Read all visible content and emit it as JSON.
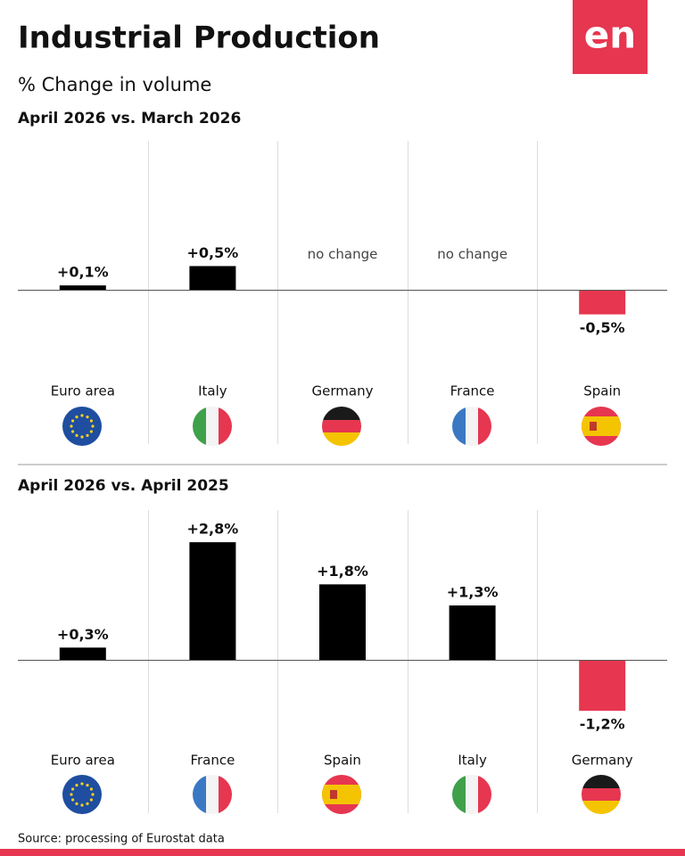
{
  "header": {
    "title": "Industrial Production",
    "subtitle": "% Change in volume",
    "logo": "en"
  },
  "source": "Source: processing of Eurostat data",
  "chart_data": [
    {
      "type": "bar",
      "title": "April 2026 vs. March 2026",
      "categories": [
        "Euro area",
        "Italy",
        "Germany",
        "France",
        "Spain"
      ],
      "values": [
        0.1,
        0.5,
        0,
        0,
        -0.5
      ],
      "value_labels": [
        "+0,1%",
        "+0,5%",
        "no change",
        "no change",
        "-0,5%"
      ],
      "color": "#000000",
      "negative_color": "#e63650",
      "ylim": [
        -1.8,
        3.0
      ]
    },
    {
      "type": "bar",
      "title": "April 2026 vs. April 2025",
      "categories": [
        "Euro area",
        "France",
        "Spain",
        "Italy",
        "Germany"
      ],
      "values": [
        0.3,
        2.8,
        1.8,
        1.3,
        -1.2
      ],
      "value_labels": [
        "+0,3%",
        "+2,8%",
        "+1,8%",
        "+1,3%",
        "-1,2%"
      ],
      "color": "#000000",
      "negative_color": "#e63650",
      "ylim": [
        -2.0,
        3.5
      ]
    }
  ]
}
